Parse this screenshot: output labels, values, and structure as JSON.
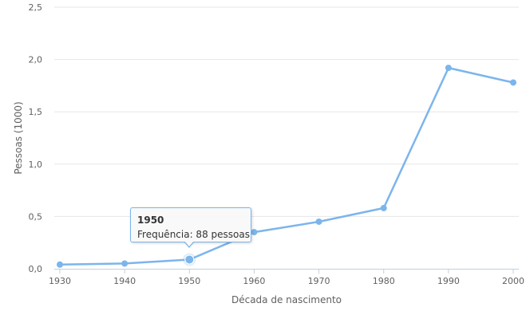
{
  "chart_data": {
    "type": "line",
    "xlabel": "Década de nascimento",
    "ylabel": "Pessoas (1000)",
    "x": [
      1930,
      1940,
      1950,
      1960,
      1970,
      1980,
      1990,
      2000
    ],
    "x_ticks": [
      "1930",
      "1940",
      "1950",
      "1960",
      "1970",
      "1980",
      "1990",
      "2000"
    ],
    "y_ticks": [
      "0,0",
      "0,5",
      "1,0",
      "1,5",
      "2,0",
      "2,5"
    ],
    "ylim": [
      0,
      2.5
    ],
    "xlim": [
      1930,
      2000
    ],
    "grid": true,
    "series": [
      {
        "values": [
          0.04,
          0.05,
          0.088,
          0.35,
          0.45,
          0.58,
          1.92,
          1.78
        ],
        "color": "#7cb5ec"
      }
    ],
    "tooltip": {
      "title": "1950",
      "text": "Frequência: 88 pessoas",
      "x": 1950,
      "y": 0.088
    }
  }
}
